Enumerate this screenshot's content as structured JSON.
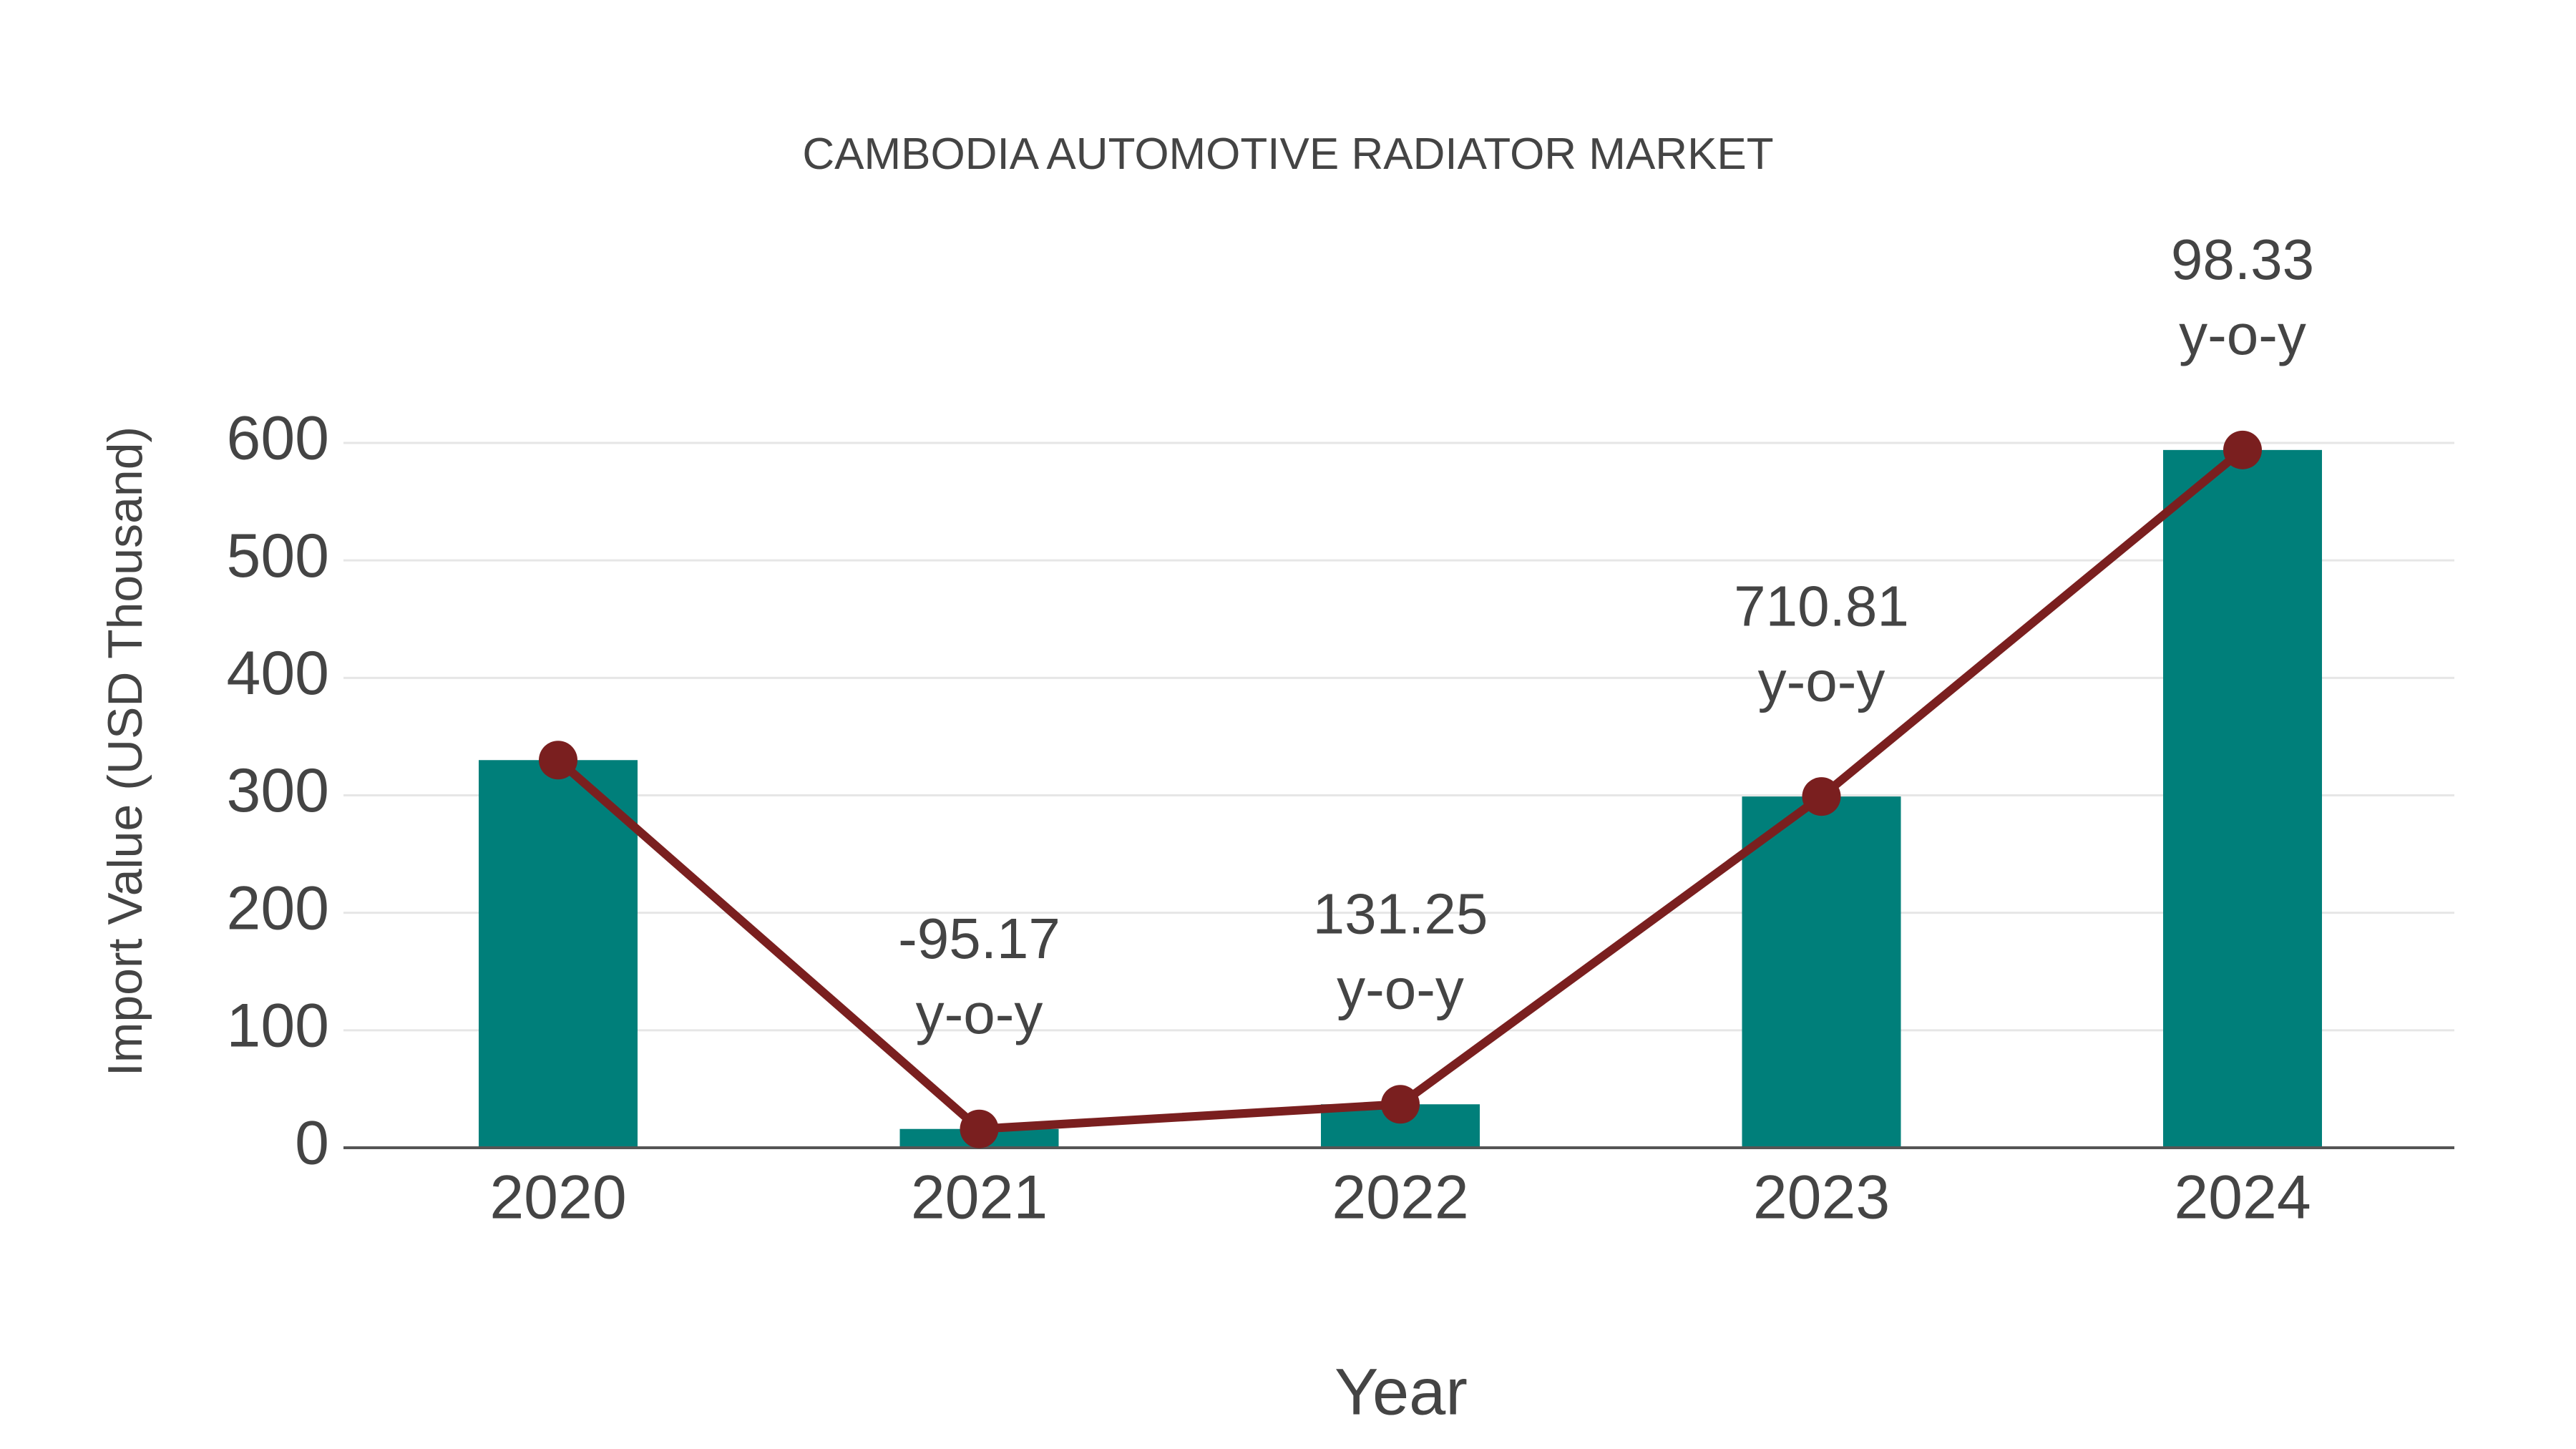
{
  "chart": {
    "title": "CAMBODIA AUTOMOTIVE RADIATOR MARKET",
    "xlabel": "Year",
    "ylabel": "Import Value (USD Thousand)",
    "colors": {
      "bar": "#007f7a",
      "line": "#7a1f1f",
      "grid": "#e6e6e6",
      "axis": "#555555",
      "text": "#444444"
    }
  },
  "chart_data": {
    "type": "bar",
    "title": "CAMBODIA AUTOMOTIVE RADIATOR MARKET",
    "xlabel": "Year",
    "ylabel": "Import Value (USD Thousand)",
    "categories": [
      "2020",
      "2021",
      "2022",
      "2023",
      "2024"
    ],
    "series": [
      {
        "name": "Import Value",
        "type": "bar",
        "values": [
          330,
          16,
          37,
          299,
          594
        ]
      },
      {
        "name": "Trend",
        "type": "line",
        "values": [
          330,
          16,
          37,
          299,
          594
        ]
      }
    ],
    "annotations": [
      {
        "category": "2021",
        "value": "-95.17",
        "suffix": "y-o-y"
      },
      {
        "category": "2022",
        "value": "131.25",
        "suffix": "y-o-y"
      },
      {
        "category": "2023",
        "value": "710.81",
        "suffix": "y-o-y"
      },
      {
        "category": "2024",
        "value": "98.33",
        "suffix": "y-o-y"
      }
    ],
    "yticks": [
      "0",
      "100",
      "200",
      "300",
      "400",
      "500",
      "600"
    ],
    "ylim": [
      0,
      650
    ],
    "grid": true,
    "legend": "none"
  }
}
